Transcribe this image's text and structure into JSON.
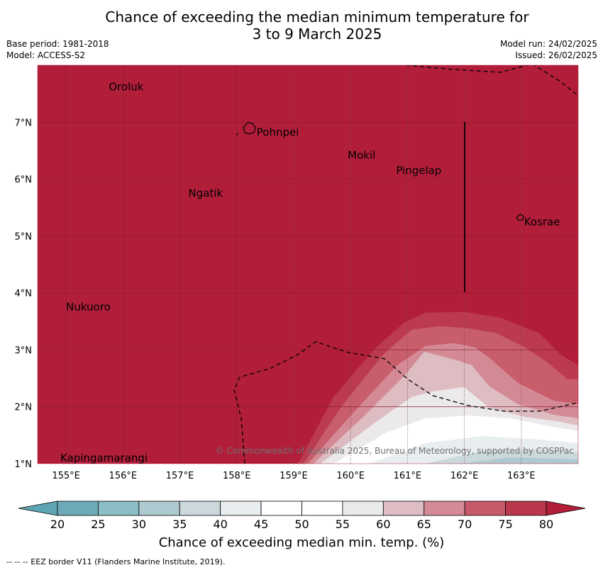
{
  "title_line1": "Chance of exceeding the median minimum temperature for",
  "title_line2": "3 to 9 March 2025",
  "base_period": "Base period: 1981-2018",
  "model": "Model: ACCESS-S2",
  "model_run": "Model run: 24/02/2025",
  "issued": "Issued: 26/02/2025",
  "copyright": "© Commonwealth of Australia 2025, Bureau of Meteorology, supported by COSPPac",
  "colorbar_title": "Chance of exceeding median min. temp. (%)",
  "footer": "-- -- -- EEZ border V11 (Flanders Marine Institute, 2019).",
  "map": {
    "lon_range": [
      154.5,
      164.0
    ],
    "lat_range": [
      1.0,
      8.0
    ],
    "lon_ticks": [
      "155°E",
      "156°E",
      "157°E",
      "158°E",
      "159°E",
      "160°E",
      "161°E",
      "162°E",
      "163°E"
    ],
    "lat_ticks": [
      "1°N",
      "2°N",
      "3°N",
      "4°N",
      "5°N",
      "6°N",
      "7°N"
    ],
    "places": [
      {
        "name": "Oroluk",
        "lon": 155.75,
        "lat": 7.62
      },
      {
        "name": "Pohnpei",
        "lon": 158.35,
        "lat": 6.82
      },
      {
        "name": "Mokil",
        "lon": 159.95,
        "lat": 6.42
      },
      {
        "name": "Pingelap",
        "lon": 160.8,
        "lat": 6.15
      },
      {
        "name": "Ngatik",
        "lon": 157.15,
        "lat": 5.75
      },
      {
        "name": "Kosrae",
        "lon": 163.05,
        "lat": 5.25
      },
      {
        "name": "Nukuoro",
        "lon": 155.0,
        "lat": 3.75
      },
      {
        "name": "Kapingamarangi",
        "lon": 154.9,
        "lat": 1.1
      }
    ]
  },
  "colorbar": {
    "levels": [
      "20",
      "25",
      "30",
      "35",
      "40",
      "45",
      "50",
      "55",
      "60",
      "65",
      "70",
      "75",
      "80"
    ],
    "colors": [
      "#5fa6b5",
      "#6daab8",
      "#8cbcc6",
      "#aec9cf",
      "#cbd8dc",
      "#e8edef",
      "#ffffff",
      "#ffffff",
      "#ebeaeb",
      "#ddbcc3",
      "#d48b96",
      "#c65a6a",
      "#b9384d",
      "#b21e3a"
    ]
  }
}
